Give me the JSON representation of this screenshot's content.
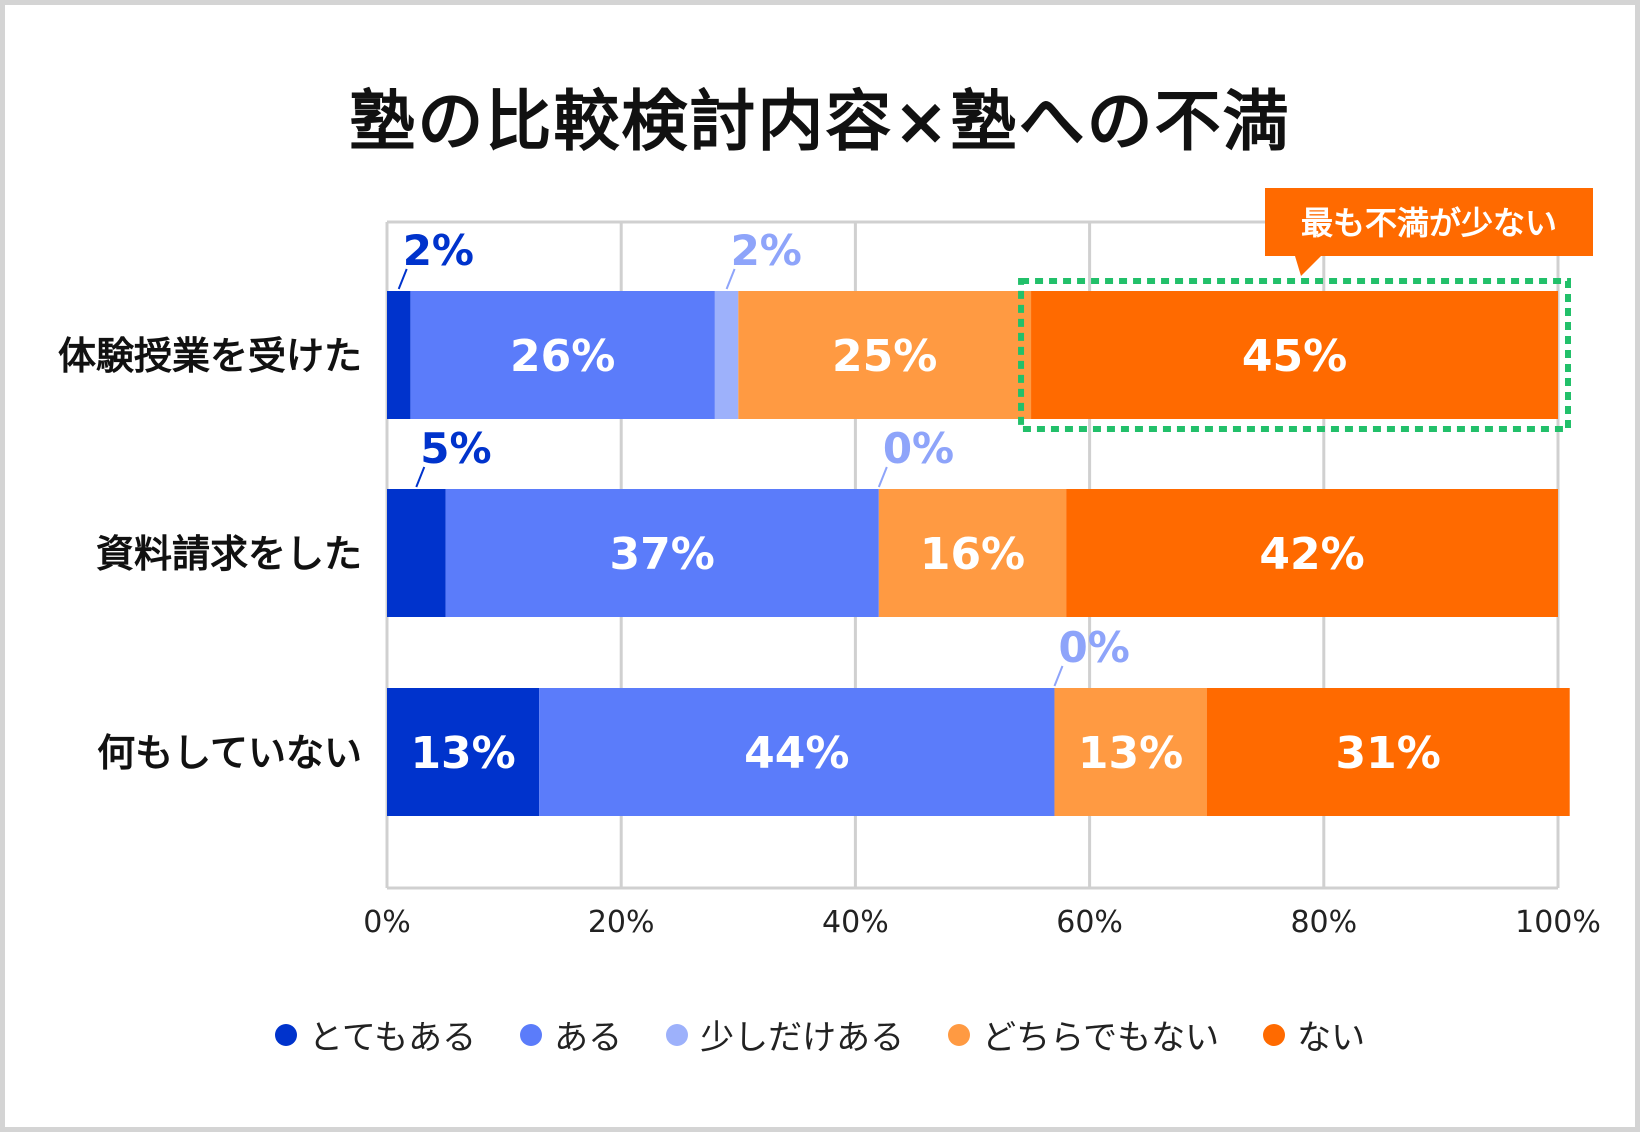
{
  "chart_data": {
    "type": "bar",
    "orientation": "horizontal-stacked-100",
    "title": "塾の比較検討内容×塾への不満",
    "categories": [
      "体験授業を受けた",
      "資料請求をした",
      "何もしていない"
    ],
    "series": [
      {
        "name": "とてもある",
        "color": "#0033cc",
        "values": [
          2,
          5,
          13
        ],
        "labels": [
          "2%",
          "5%",
          "13%"
        ]
      },
      {
        "name": "ある",
        "color": "#5b7cfa",
        "values": [
          26,
          37,
          44
        ],
        "labels": [
          "26%",
          "37%",
          "44%"
        ]
      },
      {
        "name": "少しだけある",
        "color": "#9db1fb",
        "values": [
          2,
          0,
          0
        ],
        "labels": [
          "2%",
          "0%",
          "0%"
        ]
      },
      {
        "name": "どちらでもない",
        "color": "#ff9a42",
        "values": [
          25,
          16,
          13
        ],
        "labels": [
          "25%",
          "16%",
          "13%"
        ]
      },
      {
        "name": "ない",
        "color": "#ff6a00",
        "values": [
          45,
          42,
          31
        ],
        "labels": [
          "45%",
          "42%",
          "31%"
        ]
      }
    ],
    "xlim": [
      0,
      100
    ],
    "xticks": [
      "0%",
      "20%",
      "40%",
      "60%",
      "80%",
      "100%"
    ],
    "grid": true,
    "legend": "bottom",
    "annotation": {
      "text": "最も不満が少ない",
      "target_category": "体験授業を受けた",
      "target_series": "ない",
      "color": "#ff6a00",
      "highlight_color": "#22c06a"
    }
  }
}
